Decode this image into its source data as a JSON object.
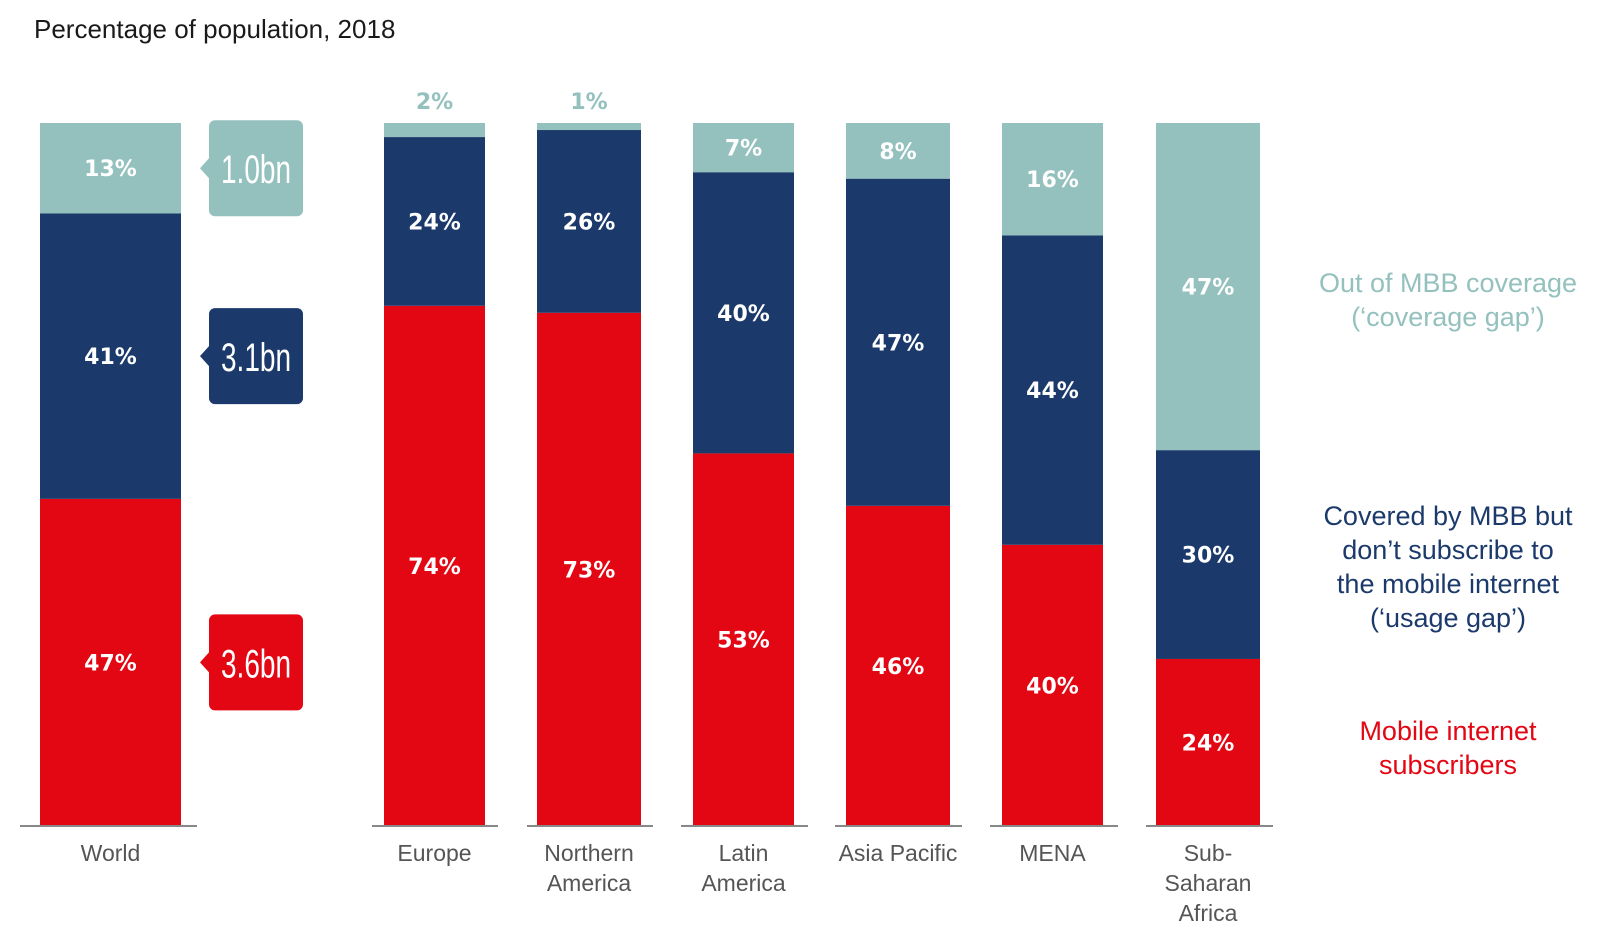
{
  "title": "Percentage of population, 2018",
  "colors": {
    "subscribers": "#e30613",
    "usage_gap": "#1b3a6b",
    "coverage_gap": "#94c1be",
    "axis": "#888888",
    "category_text": "#555555"
  },
  "callouts": [
    {
      "text": "1.0bn",
      "series": "coverage_gap"
    },
    {
      "text": "3.1bn",
      "series": "usage_gap"
    },
    {
      "text": "3.6bn",
      "series": "subscribers"
    }
  ],
  "legend": [
    {
      "series": "coverage_gap",
      "lines": [
        "Out of MBB coverage",
        "(‘coverage gap’)"
      ]
    },
    {
      "series": "usage_gap",
      "lines": [
        "Covered by MBB but",
        "don’t subscribe to",
        "the mobile internet",
        "(‘usage gap’)"
      ]
    },
    {
      "series": "subscribers",
      "lines": [
        "Mobile internet",
        "subscribers"
      ]
    }
  ],
  "chart_data": {
    "type": "bar",
    "stacked": true,
    "percent": true,
    "categories": [
      [
        "World"
      ],
      [
        "Europe"
      ],
      [
        "Northern",
        "America"
      ],
      [
        "Latin",
        "America"
      ],
      [
        "Asia Pacific"
      ],
      [
        "MENA"
      ],
      [
        "Sub-",
        "Saharan",
        "Africa"
      ]
    ],
    "series": [
      {
        "key": "subscribers",
        "name": "Mobile internet subscribers",
        "values": [
          47,
          74,
          73,
          53,
          46,
          40,
          24
        ],
        "labels": [
          "47%",
          "74%",
          "73%",
          "53%",
          "46%",
          "40%",
          "24%"
        ]
      },
      {
        "key": "usage_gap",
        "name": "Covered by MBB but don’t subscribe to the mobile internet (‘usage gap’)",
        "values": [
          41,
          24,
          26,
          40,
          47,
          44,
          30
        ],
        "labels": [
          "41%",
          "24%",
          "26%",
          "40%",
          "47%",
          "44%",
          "30%"
        ]
      },
      {
        "key": "coverage_gap",
        "name": "Out of MBB coverage (‘coverage gap’)",
        "values": [
          13,
          2,
          1,
          7,
          8,
          16,
          47
        ],
        "labels": [
          "13%",
          "2%",
          "1%",
          "7%",
          "8%",
          "16%",
          "47%"
        ]
      }
    ],
    "ylim": [
      0,
      100
    ],
    "grid": false,
    "legend_position": "right"
  }
}
